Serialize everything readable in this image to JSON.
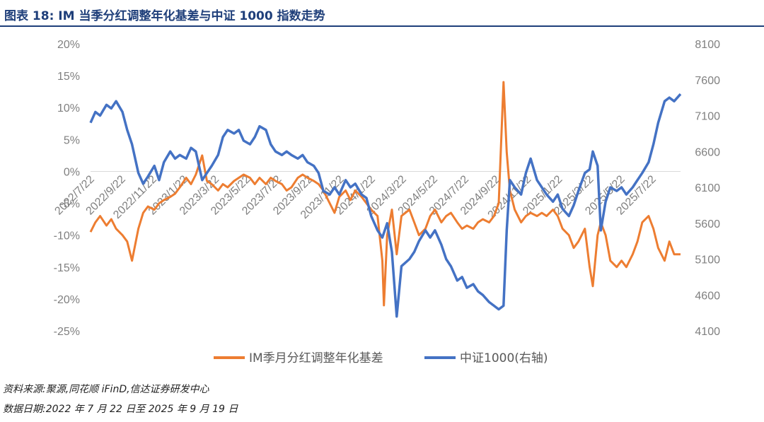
{
  "title": "图表 18:  IM 当季分红调整年化基差与中证 1000 指数走势",
  "footer": {
    "source": "资料来源:聚源,同花顺 iFinD,信达证券研发中心",
    "date": "数据日期:2022 年 7 月 22 日至 2025 年 9 月 19 日"
  },
  "chart_data": {
    "type": "line",
    "title": "",
    "x_labels": [
      "2022/7/22",
      "2022/9/22",
      "2022/11/22",
      "2023/1/22",
      "2023/3/22",
      "2023/5/22",
      "2023/7/22",
      "2023/9/22",
      "2023/11/22",
      "2024/1/22",
      "2024/3/22",
      "2024/5/22",
      "2024/7/22",
      "2024/9/22",
      "2024/11/22",
      "2025/1/22",
      "2025/3/22",
      "2025/5/22",
      "2025/7/22"
    ],
    "y_left": {
      "min": -0.25,
      "max": 0.2,
      "step": 0.05,
      "ticks": [
        "20%",
        "15%",
        "10%",
        "5%",
        "0%",
        "-5%",
        "-10%",
        "-15%",
        "-20%",
        "-25%"
      ]
    },
    "y_right": {
      "min": 4100,
      "max": 8100,
      "step": 500,
      "ticks": [
        "8100",
        "7600",
        "7100",
        "6600",
        "6100",
        "5600",
        "5100",
        "4600",
        "4100"
      ]
    },
    "series": [
      {
        "name": "IM季月分红调整年化基差",
        "axis": "left",
        "color": "#ed7d31",
        "points": [
          [
            0,
            -0.095
          ],
          [
            0.3,
            -0.08
          ],
          [
            0.6,
            -0.07
          ],
          [
            1,
            -0.085
          ],
          [
            1.3,
            -0.075
          ],
          [
            1.6,
            -0.09
          ],
          [
            2,
            -0.1
          ],
          [
            2.3,
            -0.11
          ],
          [
            2.6,
            -0.14
          ],
          [
            3,
            -0.09
          ],
          [
            3.3,
            -0.065
          ],
          [
            3.6,
            -0.055
          ],
          [
            4,
            -0.06
          ],
          [
            4.3,
            -0.05
          ],
          [
            4.6,
            -0.045
          ],
          [
            5,
            -0.04
          ],
          [
            5.3,
            -0.035
          ],
          [
            5.6,
            -0.025
          ],
          [
            6,
            -0.01
          ],
          [
            6.3,
            -0.02
          ],
          [
            6.6,
            -0.005
          ],
          [
            7,
            0.025
          ],
          [
            7.3,
            -0.015
          ],
          [
            7.6,
            -0.02
          ],
          [
            8,
            -0.03
          ],
          [
            8.3,
            -0.02
          ],
          [
            8.6,
            -0.025
          ],
          [
            9,
            -0.015
          ],
          [
            9.3,
            -0.01
          ],
          [
            9.6,
            -0.005
          ],
          [
            10,
            -0.01
          ],
          [
            10.3,
            -0.02
          ],
          [
            10.6,
            -0.01
          ],
          [
            11,
            -0.02
          ],
          [
            11.3,
            -0.01
          ],
          [
            11.6,
            -0.015
          ],
          [
            12,
            -0.02
          ],
          [
            12.3,
            -0.03
          ],
          [
            12.6,
            -0.025
          ],
          [
            13,
            -0.01
          ],
          [
            13.3,
            -0.005
          ],
          [
            13.6,
            -0.01
          ],
          [
            14,
            -0.015
          ],
          [
            14.3,
            -0.02
          ],
          [
            14.6,
            -0.03
          ],
          [
            15,
            -0.05
          ],
          [
            15.3,
            -0.065
          ],
          [
            15.6,
            -0.04
          ],
          [
            16,
            -0.03
          ],
          [
            16.3,
            -0.045
          ],
          [
            16.6,
            -0.03
          ],
          [
            17,
            -0.04
          ],
          [
            17.3,
            -0.05
          ],
          [
            17.6,
            -0.06
          ],
          [
            18,
            -0.07
          ],
          [
            18.3,
            -0.14
          ],
          [
            18.4,
            -0.21
          ],
          [
            18.6,
            -0.1
          ],
          [
            18.9,
            -0.06
          ],
          [
            19.2,
            -0.13
          ],
          [
            19.5,
            -0.07
          ],
          [
            20,
            -0.06
          ],
          [
            20.3,
            -0.08
          ],
          [
            20.6,
            -0.1
          ],
          [
            21,
            -0.09
          ],
          [
            21.3,
            -0.07
          ],
          [
            21.6,
            -0.06
          ],
          [
            22,
            -0.08
          ],
          [
            22.3,
            -0.07
          ],
          [
            22.6,
            -0.065
          ],
          [
            23,
            -0.08
          ],
          [
            23.3,
            -0.09
          ],
          [
            23.6,
            -0.085
          ],
          [
            24,
            -0.09
          ],
          [
            24.3,
            -0.08
          ],
          [
            24.6,
            -0.075
          ],
          [
            25,
            -0.08
          ],
          [
            25.3,
            -0.07
          ],
          [
            25.6,
            -0.05
          ],
          [
            25.9,
            0.14
          ],
          [
            26.1,
            0.03
          ],
          [
            26.3,
            -0.03
          ],
          [
            26.6,
            -0.06
          ],
          [
            27,
            -0.08
          ],
          [
            27.3,
            -0.07
          ],
          [
            27.6,
            -0.065
          ],
          [
            28,
            -0.07
          ],
          [
            28.3,
            -0.065
          ],
          [
            28.6,
            -0.07
          ],
          [
            29,
            -0.06
          ],
          [
            29.3,
            -0.07
          ],
          [
            29.6,
            -0.09
          ],
          [
            30,
            -0.1
          ],
          [
            30.3,
            -0.12
          ],
          [
            30.6,
            -0.11
          ],
          [
            31,
            -0.09
          ],
          [
            31.3,
            -0.15
          ],
          [
            31.5,
            -0.18
          ],
          [
            31.8,
            -0.1
          ],
          [
            32,
            -0.08
          ],
          [
            32.3,
            -0.1
          ],
          [
            32.6,
            -0.14
          ],
          [
            33,
            -0.15
          ],
          [
            33.3,
            -0.14
          ],
          [
            33.6,
            -0.15
          ],
          [
            34,
            -0.13
          ],
          [
            34.3,
            -0.11
          ],
          [
            34.6,
            -0.08
          ],
          [
            35,
            -0.07
          ],
          [
            35.3,
            -0.09
          ],
          [
            35.6,
            -0.12
          ],
          [
            36,
            -0.14
          ],
          [
            36.3,
            -0.11
          ],
          [
            36.6,
            -0.13
          ],
          [
            37,
            -0.13
          ]
        ]
      },
      {
        "name": "中证1000(右轴)",
        "axis": "right",
        "color": "#4472c4",
        "points": [
          [
            0,
            7000
          ],
          [
            0.3,
            7150
          ],
          [
            0.6,
            7100
          ],
          [
            1,
            7250
          ],
          [
            1.3,
            7200
          ],
          [
            1.6,
            7300
          ],
          [
            2,
            7150
          ],
          [
            2.3,
            6900
          ],
          [
            2.6,
            6700
          ],
          [
            3,
            6300
          ],
          [
            3.3,
            6150
          ],
          [
            3.6,
            6250
          ],
          [
            4,
            6400
          ],
          [
            4.3,
            6200
          ],
          [
            4.6,
            6450
          ],
          [
            5,
            6600
          ],
          [
            5.3,
            6500
          ],
          [
            5.6,
            6550
          ],
          [
            6,
            6500
          ],
          [
            6.3,
            6650
          ],
          [
            6.6,
            6600
          ],
          [
            7,
            6200
          ],
          [
            7.3,
            6300
          ],
          [
            7.6,
            6400
          ],
          [
            8,
            6550
          ],
          [
            8.3,
            6800
          ],
          [
            8.6,
            6900
          ],
          [
            9,
            6850
          ],
          [
            9.3,
            6900
          ],
          [
            9.6,
            6750
          ],
          [
            10,
            6700
          ],
          [
            10.3,
            6800
          ],
          [
            10.6,
            6950
          ],
          [
            11,
            6900
          ],
          [
            11.3,
            6700
          ],
          [
            11.6,
            6600
          ],
          [
            12,
            6550
          ],
          [
            12.3,
            6600
          ],
          [
            12.6,
            6550
          ],
          [
            13,
            6500
          ],
          [
            13.3,
            6550
          ],
          [
            13.6,
            6450
          ],
          [
            14,
            6400
          ],
          [
            14.3,
            6300
          ],
          [
            14.6,
            6050
          ],
          [
            15,
            6000
          ],
          [
            15.3,
            6100
          ],
          [
            15.6,
            6000
          ],
          [
            16,
            6200
          ],
          [
            16.3,
            6100
          ],
          [
            16.6,
            6150
          ],
          [
            17,
            6000
          ],
          [
            17.3,
            5950
          ],
          [
            17.6,
            5700
          ],
          [
            18,
            5500
          ],
          [
            18.3,
            5400
          ],
          [
            18.6,
            5600
          ],
          [
            18.9,
            5200
          ],
          [
            19.2,
            4300
          ],
          [
            19.5,
            5000
          ],
          [
            20,
            5100
          ],
          [
            20.3,
            5200
          ],
          [
            20.6,
            5350
          ],
          [
            21,
            5500
          ],
          [
            21.3,
            5400
          ],
          [
            21.6,
            5500
          ],
          [
            22,
            5300
          ],
          [
            22.3,
            5100
          ],
          [
            22.6,
            5000
          ],
          [
            23,
            4800
          ],
          [
            23.3,
            4850
          ],
          [
            23.6,
            4700
          ],
          [
            24,
            4750
          ],
          [
            24.3,
            4650
          ],
          [
            24.6,
            4600
          ],
          [
            25,
            4500
          ],
          [
            25.3,
            4450
          ],
          [
            25.6,
            4400
          ],
          [
            25.9,
            4450
          ],
          [
            26.1,
            5500
          ],
          [
            26.3,
            6200
          ],
          [
            26.6,
            6100
          ],
          [
            27,
            6000
          ],
          [
            27.3,
            6300
          ],
          [
            27.6,
            6500
          ],
          [
            28,
            6200
          ],
          [
            28.3,
            6100
          ],
          [
            28.6,
            6000
          ],
          [
            29,
            5900
          ],
          [
            29.3,
            6000
          ],
          [
            29.6,
            5800
          ],
          [
            30,
            5700
          ],
          [
            30.3,
            5850
          ],
          [
            30.6,
            6050
          ],
          [
            31,
            6300
          ],
          [
            31.3,
            6350
          ],
          [
            31.5,
            6600
          ],
          [
            31.8,
            6400
          ],
          [
            32,
            5500
          ],
          [
            32.3,
            5900
          ],
          [
            32.6,
            6100
          ],
          [
            33,
            6050
          ],
          [
            33.3,
            6100
          ],
          [
            33.6,
            6000
          ],
          [
            34,
            6100
          ],
          [
            34.3,
            6200
          ],
          [
            34.6,
            6300
          ],
          [
            35,
            6450
          ],
          [
            35.3,
            6700
          ],
          [
            35.6,
            7000
          ],
          [
            36,
            7300
          ],
          [
            36.3,
            7350
          ],
          [
            36.6,
            7300
          ],
          [
            37,
            7400
          ]
        ]
      }
    ],
    "legend_position": "bottom",
    "grid": false
  }
}
